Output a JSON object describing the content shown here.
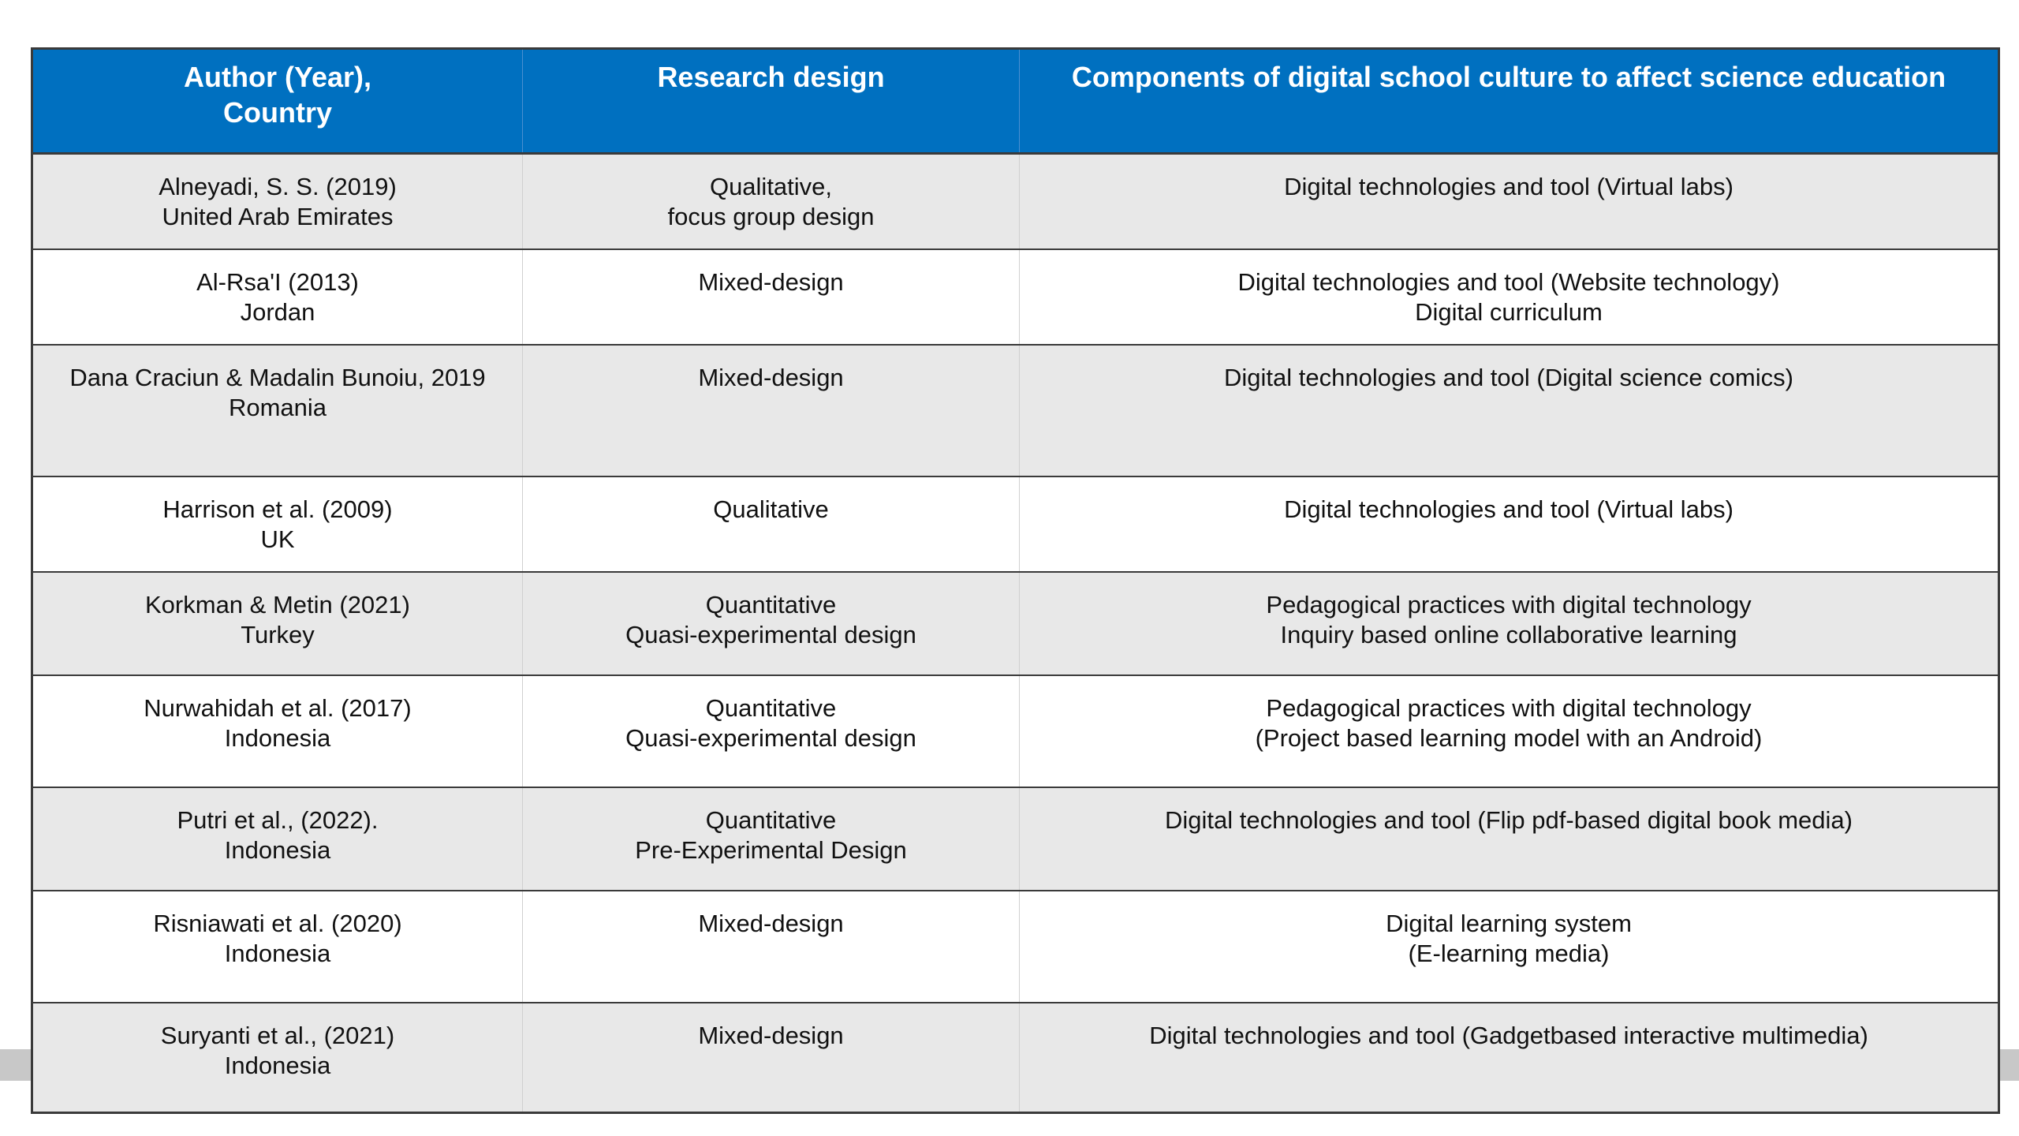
{
  "table": {
    "headers": {
      "author_line1": "Author (Year),",
      "author_line2": "Country",
      "design": "Research design",
      "components": "Components of digital school culture to affect science education"
    },
    "rows": [
      {
        "author": [
          "Alneyadi, S. S. (2019)",
          "United Arab Emirates"
        ],
        "design": [
          "Qualitative,",
          "focus group design"
        ],
        "components": [
          "Digital technologies and tool (Virtual labs)"
        ]
      },
      {
        "author": [
          "Al-Rsa'I (2013)",
          "Jordan"
        ],
        "design": [
          "Mixed-design"
        ],
        "components": [
          "Digital technologies and tool (Website technology)",
          "Digital curriculum"
        ]
      },
      {
        "author": [
          "Dana Craciun & Madalin Bunoiu, 2019",
          "Romania"
        ],
        "design": [
          "Mixed-design"
        ],
        "components": [
          "Digital technologies and tool (Digital science comics)"
        ]
      },
      {
        "author": [
          "Harrison et al. (2009)",
          "UK"
        ],
        "design": [
          "Qualitative"
        ],
        "components": [
          "Digital technologies and tool (Virtual labs)"
        ]
      },
      {
        "author": [
          "Korkman & Metin (2021)",
          "Turkey"
        ],
        "design": [
          "Quantitative",
          "Quasi-experimental design"
        ],
        "components": [
          "Pedagogical practices with digital technology",
          "Inquiry based online collaborative learning"
        ]
      },
      {
        "author": [
          "Nurwahidah et al. (2017)",
          "Indonesia"
        ],
        "design": [
          "Quantitative",
          "Quasi-experimental design"
        ],
        "components": [
          "Pedagogical practices with digital technology",
          "(Project based learning model with an Android)"
        ]
      },
      {
        "author": [
          "Putri et al., (2022).",
          "Indonesia"
        ],
        "design": [
          "Quantitative",
          "Pre-Experimental Design"
        ],
        "components": [
          "Digital technologies and tool (Flip pdf-based digital book media)"
        ]
      },
      {
        "author": [
          "Risniawati et al. (2020)",
          "Indonesia"
        ],
        "design": [
          "Mixed-design"
        ],
        "components": [
          "Digital learning system",
          "(E-learning media)"
        ]
      },
      {
        "author": [
          "Suryanti et al., (2021)",
          "Indonesia"
        ],
        "design": [
          "Mixed-design"
        ],
        "components": [
          "Digital technologies and tool (Gadgetbased interactive multimedia)"
        ]
      }
    ]
  },
  "colors": {
    "header_bg": "#0070c0",
    "header_text": "#ffffff",
    "row_shade": "#e8e8e8",
    "row_plain": "#ffffff",
    "border": "#3a3a3a"
  }
}
